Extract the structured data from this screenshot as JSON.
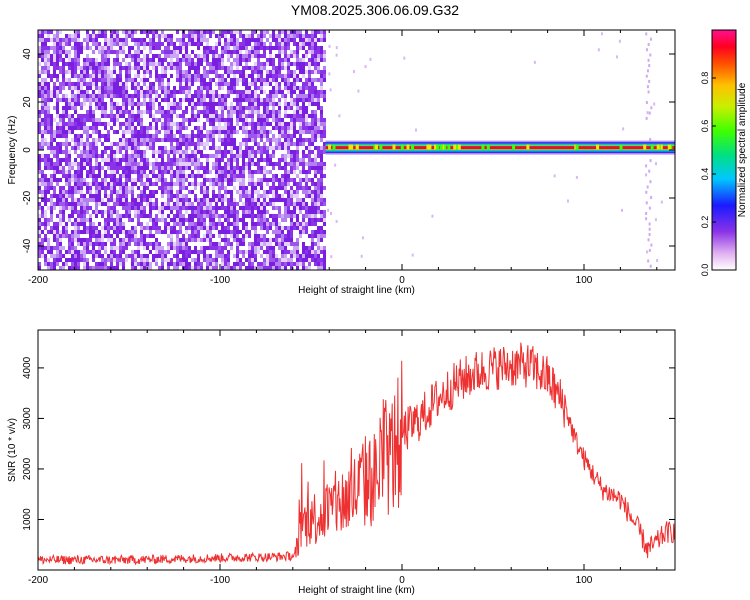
{
  "title": "YM08.2025.306.06.09.G32",
  "colors": {
    "snr_line": "#ee3030",
    "ridge": "#dd1133",
    "noise": "#8a33e8"
  },
  "chart_data": [
    {
      "type": "heatmap",
      "xlabel": "Height of straight line (km)",
      "ylabel": "Frequency (Hz)",
      "xlim": [
        -200,
        150
      ],
      "ylim": [
        -50,
        50
      ],
      "xticks": [
        -200,
        -100,
        0,
        100
      ],
      "yticks": [
        -40,
        -20,
        0,
        20,
        40
      ],
      "colorbar": {
        "label": "Normalized spectral amplitude",
        "range": [
          0,
          1
        ],
        "ticks": [
          0.0,
          0.2,
          0.4,
          0.6,
          0.8
        ]
      },
      "noise_region_x": [
        -200,
        -42
      ],
      "ridge": {
        "x_range": [
          -42,
          150
        ],
        "frequency": 1
      }
    },
    {
      "type": "line",
      "xlabel": "Height of straight line (km)",
      "ylabel": "SNR (10 * v/v)",
      "xlim": [
        -200,
        150
      ],
      "ylim": [
        0,
        4750
      ],
      "xticks": [
        -200,
        -100,
        0,
        100
      ],
      "yticks": [
        1000,
        2000,
        3000,
        4000
      ],
      "series": [
        {
          "x": [
            -200,
            -150,
            -100,
            -70,
            -59,
            -55,
            -50,
            -45,
            -40,
            -35,
            -30,
            -25,
            -20,
            -15,
            -10,
            -5,
            0,
            10,
            20,
            30,
            40,
            50,
            60,
            70,
            80,
            90,
            95,
            100,
            110,
            120,
            130,
            135,
            140,
            145,
            150
          ],
          "values": [
            200,
            200,
            240,
            260,
            280,
            900,
            1000,
            1100,
            1200,
            1300,
            1400,
            1550,
            1750,
            1800,
            2200,
            2300,
            2700,
            3000,
            3400,
            3700,
            3900,
            4000,
            4050,
            4050,
            3800,
            3200,
            2600,
            2200,
            1600,
            1400,
            800,
            400,
            550,
            750,
            750
          ]
        }
      ]
    }
  ]
}
